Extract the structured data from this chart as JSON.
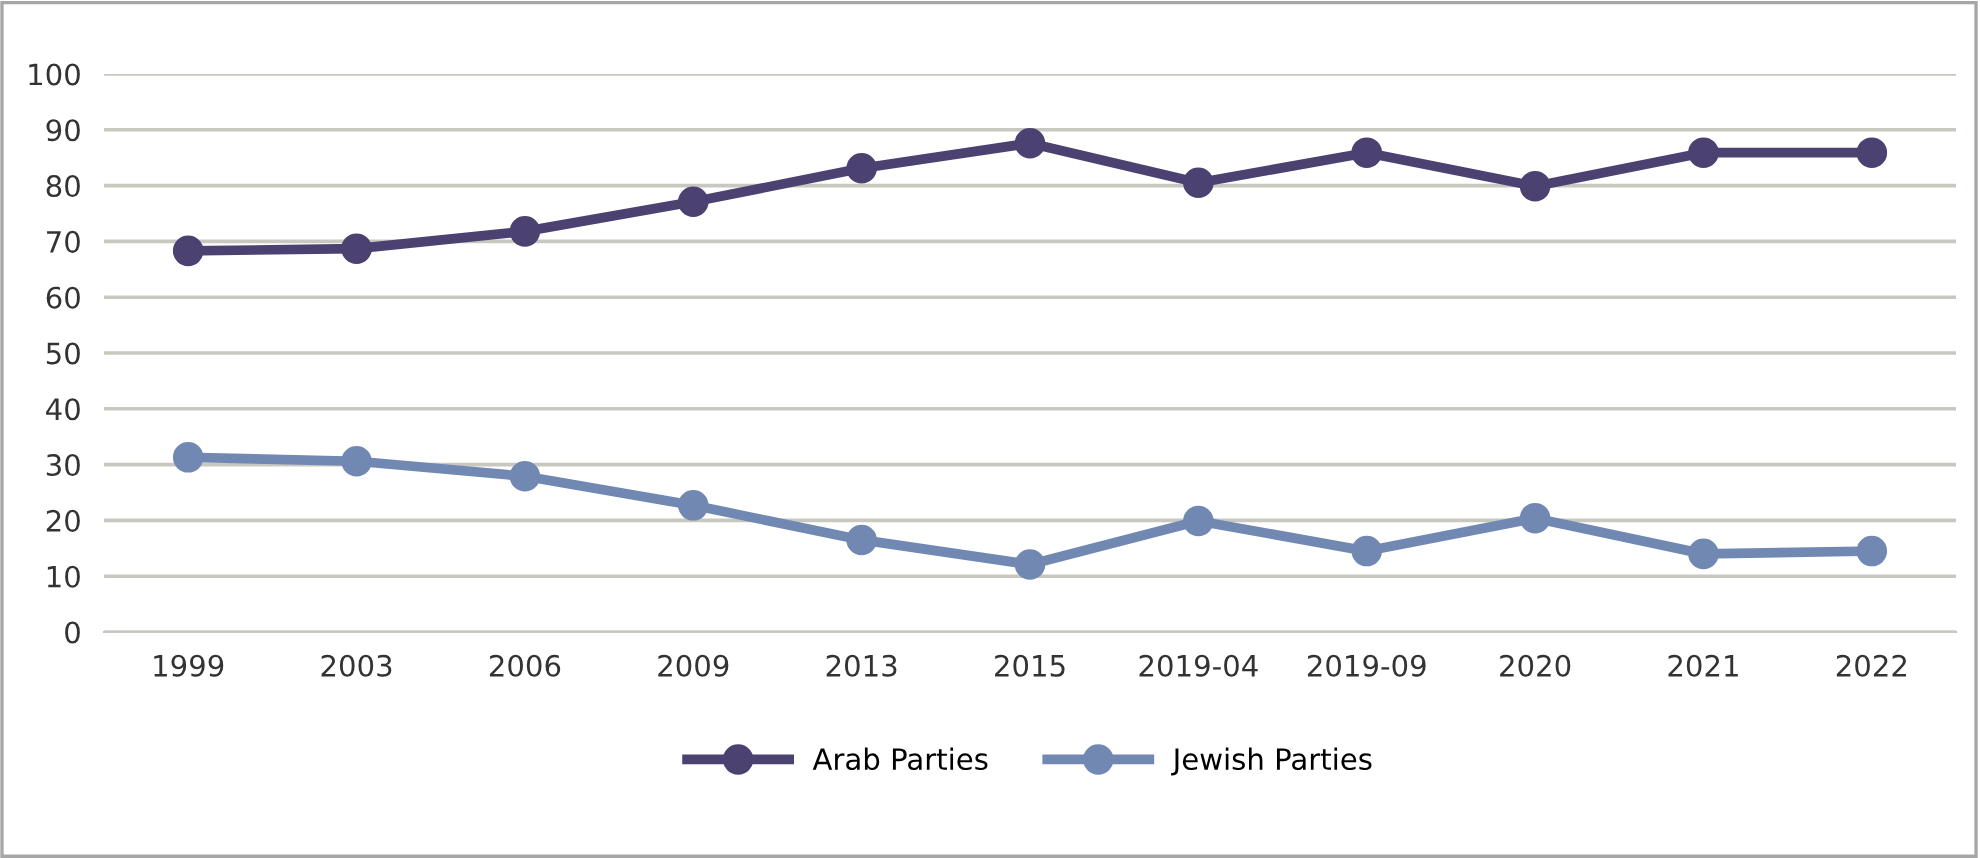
{
  "chart_data": {
    "type": "line",
    "categories": [
      "1999",
      "2003",
      "2006",
      "2009",
      "2013",
      "2015",
      "2019-04",
      "2019-09",
      "2020",
      "2021",
      "2022"
    ],
    "series": [
      {
        "name": "Arab Parties",
        "color": "#4b4272",
        "values": [
          68.3,
          68.7,
          71.8,
          77.1,
          83.1,
          87.6,
          80.5,
          85.9,
          79.9,
          85.9,
          85.9
        ]
      },
      {
        "name": "Jewish Parties",
        "color": "#7189b2",
        "values": [
          31.3,
          30.6,
          27.9,
          22.7,
          16.5,
          12.1,
          19.9,
          14.5,
          20.4,
          14.0,
          14.5
        ]
      }
    ],
    "ylim": [
      0,
      100
    ],
    "yticks": [
      0,
      10,
      20,
      30,
      40,
      50,
      60,
      70,
      80,
      90,
      100
    ],
    "grid": "y",
    "legend": "bottom",
    "marker": "circle",
    "line_style": "solid"
  }
}
